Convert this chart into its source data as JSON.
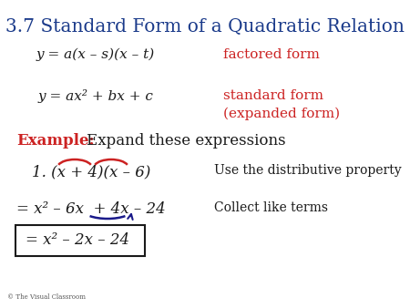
{
  "title": "3.7 Standard Form of a Quadratic Relation",
  "title_color": "#1a3a8a",
  "bg_color": "#ffffff",
  "copyright": "© The Visual Classroom",
  "line1_left": "y = a(x – s)(x – t)",
  "line1_right": "factored form",
  "line2_left": "y = ax² + bx + c",
  "line2_right": "standard form\n(expanded form)",
  "red_color": "#cc2222",
  "black_color": "#1a1a1a",
  "blue_color": "#1a1a8a",
  "example_label": "Example:",
  "example_text": "Expand these expressions",
  "item1": "1. (x + 4)(x – 6)",
  "item1_note": "Use the distributive property",
  "item2": "= x² – 6x  + 4x – 24",
  "item2_note": "Collect like terms",
  "item3": "= x² – 2x – 24"
}
